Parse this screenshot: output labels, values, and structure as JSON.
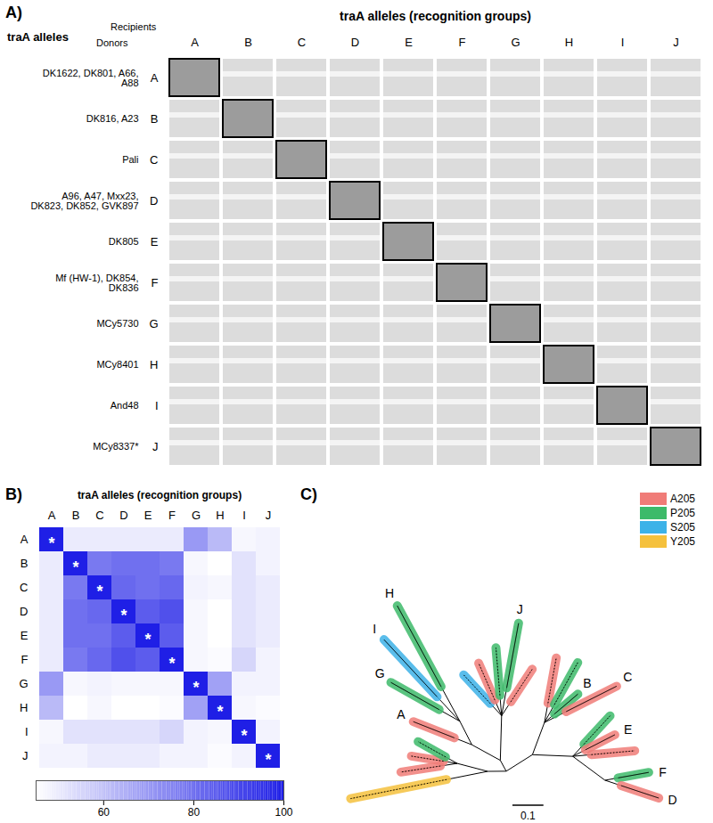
{
  "chart_data": [
    {
      "type": "image_grid",
      "panel": "A)",
      "title": "traA alleles (recognition groups)",
      "row_header": "traA alleles",
      "corner_top": "Recipients",
      "corner_bottom": "Donors",
      "categories": [
        "A",
        "B",
        "C",
        "D",
        "E",
        "F",
        "G",
        "H",
        "I",
        "J"
      ],
      "rows": [
        {
          "group": "A",
          "strains": "DK1622, DK801, A66, A88"
        },
        {
          "group": "B",
          "strains": "DK816, A23"
        },
        {
          "group": "C",
          "strains": "Pali"
        },
        {
          "group": "D",
          "strains": "A96, A47, Mxx23, DK823, DK852, GVK897"
        },
        {
          "group": "E",
          "strains": "DK805"
        },
        {
          "group": "F",
          "strains": "Mf (HW-1), DK854, DK836"
        },
        {
          "group": "G",
          "strains": "MCy5730"
        },
        {
          "group": "H",
          "strains": "MCy8401"
        },
        {
          "group": "I",
          "strains": "And48"
        },
        {
          "group": "J",
          "strains": "MCy8337*"
        }
      ]
    },
    {
      "type": "heatmap",
      "panel": "B)",
      "title": "traA alleles (recognition groups)",
      "categories": [
        "A",
        "B",
        "C",
        "D",
        "E",
        "F",
        "G",
        "H",
        "I",
        "J"
      ],
      "cells": [
        [
          100,
          50,
          50,
          50,
          50,
          50,
          70,
          62,
          47,
          48
        ],
        [
          50,
          100,
          78,
          80,
          80,
          78,
          47,
          45,
          52,
          48
        ],
        [
          50,
          78,
          100,
          82,
          80,
          82,
          48,
          47,
          52,
          50
        ],
        [
          50,
          80,
          82,
          100,
          85,
          88,
          47,
          45,
          52,
          50
        ],
        [
          50,
          80,
          80,
          85,
          100,
          85,
          47,
          43,
          52,
          50
        ],
        [
          50,
          78,
          82,
          88,
          85,
          100,
          47,
          46,
          55,
          48
        ],
        [
          70,
          47,
          48,
          47,
          47,
          47,
          100,
          68,
          48,
          48
        ],
        [
          62,
          45,
          47,
          45,
          43,
          46,
          68,
          100,
          47,
          46
        ],
        [
          47,
          52,
          52,
          52,
          52,
          55,
          48,
          47,
          100,
          48
        ],
        [
          48,
          48,
          50,
          50,
          50,
          48,
          48,
          46,
          48,
          100
        ]
      ],
      "annotation": "*",
      "colorbar": {
        "range": [
          45,
          100
        ],
        "ticks": [
          60,
          80,
          100
        ],
        "colors": [
          "#ffffff",
          "#1f1fe6"
        ]
      }
    },
    {
      "type": "tree",
      "panel": "C)",
      "legend": "top-right",
      "scale_bar": 0.1,
      "series": [
        {
          "name": "A205",
          "color": "#f07c78"
        },
        {
          "name": "P205",
          "color": "#3dba6a"
        },
        {
          "name": "S205",
          "color": "#3db2e8"
        },
        {
          "name": "Y205",
          "color": "#f5c13d"
        }
      ],
      "tree": {
        "children": [
          {
            "length": 0.06,
            "children": [
              {
                "length": 0.45,
                "residue": "Y205"
              },
              {
                "length": 0.1,
                "children": [
                  {
                    "length": 0.18,
                    "residue": "A205"
                  },
                  {
                    "length": 0.15,
                    "residue": "A205"
                  },
                  {
                    "length": 0.14,
                    "residue": "P205"
                  }
                ]
              }
            ]
          },
          {
            "length": 0.04,
            "children": [
              {
                "length": 0.1,
                "children": [
                  {
                    "length": 0.2,
                    "residue": "A205",
                    "label": "A"
                  },
                  {
                    "length": 0.08,
                    "children": [
                      {
                        "length": 0.25,
                        "residue": "P205",
                        "label": "G"
                      },
                      {
                        "length": 0.36,
                        "residue": "S205",
                        "label": "I"
                      },
                      {
                        "length": 0.42,
                        "residue": "P205",
                        "label": "H"
                      }
                    ]
                  }
                ]
              },
              {
                "length": 0.14,
                "children": [
                  {
                    "length": 0.16,
                    "residue": "S205"
                  },
                  {
                    "length": 0.18,
                    "residue": "A205"
                  },
                  {
                    "length": 0.22,
                    "residue": "P205"
                  },
                  {
                    "length": 0.3,
                    "residue": "P205",
                    "label": "J"
                  },
                  {
                    "length": 0.16,
                    "residue": "A205"
                  }
                ]
              }
            ]
          },
          {
            "length": 0.1,
            "children": [
              {
                "length": 0.1,
                "children": [
                  {
                    "length": 0.2,
                    "residue": "A205"
                  },
                  {
                    "length": 0.22,
                    "residue": "P205"
                  },
                  {
                    "length": 0.14,
                    "residue": "P205",
                    "label": "B"
                  },
                  {
                    "length": 0.25,
                    "residue": "A205",
                    "label": "C"
                  }
                ]
              },
              {
                "length": 0.12,
                "children": [
                  {
                    "length": 0.16,
                    "residue": "P205"
                  },
                  {
                    "length": 0.15,
                    "residue": "A205",
                    "label": "E"
                  },
                  {
                    "length": 0.2,
                    "residue": "A205"
                  },
                  {
                    "length": 0.1,
                    "children": [
                      {
                        "length": 0.14,
                        "residue": "P205",
                        "label": "F"
                      },
                      {
                        "length": 0.18,
                        "residue": "A205",
                        "label": "D"
                      }
                    ]
                  }
                ]
              }
            ]
          }
        ]
      }
    }
  ]
}
